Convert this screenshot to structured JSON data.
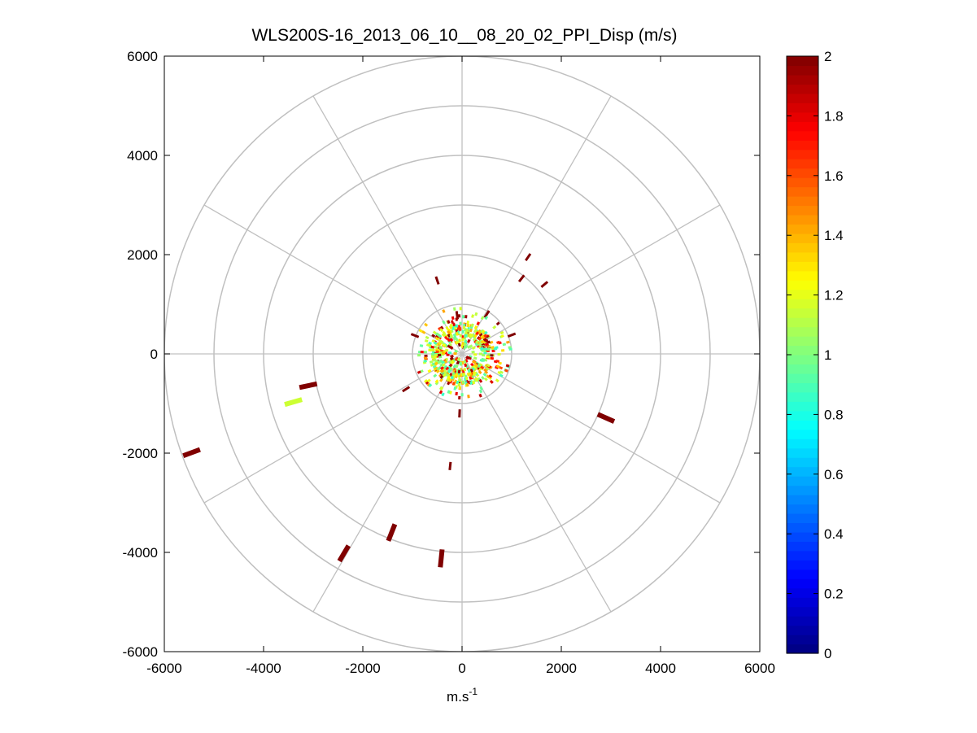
{
  "chart_data": {
    "type": "scatter",
    "title": "WLS200S-16_2013_06_10__08_20_02_PPI_Disp (m/s)",
    "xlabel_base": "m.s",
    "xlabel_sup": "-1",
    "ylabel": "",
    "xlim": [
      -6000,
      6000
    ],
    "ylim": [
      -6000,
      6000
    ],
    "x_ticks": [
      -6000,
      -4000,
      -2000,
      0,
      2000,
      4000,
      6000
    ],
    "y_ticks": [
      -6000,
      -4000,
      -2000,
      0,
      2000,
      4000,
      6000
    ],
    "x_tick_labels": [
      "-6000",
      "-4000",
      "-2000",
      "0",
      "2000",
      "4000",
      "6000"
    ],
    "y_tick_labels": [
      "-6000",
      "-4000",
      "-2000",
      "0",
      "2000",
      "4000",
      "6000"
    ],
    "polar_grid": {
      "ring_radii": [
        1000,
        2000,
        3000,
        4000,
        5000,
        6000
      ],
      "spoke_angles_deg": [
        0,
        30,
        60,
        90,
        120,
        150,
        180,
        210,
        240,
        270,
        300,
        330
      ],
      "grid_color": "#c0c0c0"
    },
    "grid": true,
    "colorbar": {
      "colormap": "jet",
      "clim": [
        0,
        2
      ],
      "ticks": [
        0,
        0.2,
        0.4,
        0.6,
        0.8,
        1,
        1.2,
        1.4,
        1.6,
        1.8,
        2
      ],
      "tick_labels": [
        "0",
        "0.2",
        "0.4",
        "0.6",
        "0.8",
        "1",
        "1.2",
        "1.4",
        "1.6",
        "1.8",
        "2"
      ],
      "position": "right"
    },
    "series": [
      {
        "points": [
          {
            "x": 1330,
            "y": 1950,
            "value": 2.0
          },
          {
            "x": 1660,
            "y": 1400,
            "value": 2.0
          },
          {
            "x": 1200,
            "y": 1520,
            "value": 2.0
          },
          {
            "x": 2900,
            "y": -1290,
            "value": 2.0
          },
          {
            "x": -3100,
            "y": -640,
            "value": 2.0
          },
          {
            "x": -3400,
            "y": -970,
            "value": 1.15
          },
          {
            "x": -5450,
            "y": -1990,
            "value": 2.0
          },
          {
            "x": -2380,
            "y": -4020,
            "value": 2.0
          },
          {
            "x": -1420,
            "y": -3600,
            "value": 2.0
          },
          {
            "x": -420,
            "y": -4120,
            "value": 2.0
          },
          {
            "x": -240,
            "y": -2260,
            "value": 2.0
          },
          {
            "x": -50,
            "y": -1200,
            "value": 2.0
          },
          {
            "x": -500,
            "y": 1480,
            "value": 2.0
          },
          {
            "x": -950,
            "y": 370,
            "value": 2.0
          },
          {
            "x": -1130,
            "y": -710,
            "value": 2.0
          },
          {
            "x": 1000,
            "y": 380,
            "value": 2.0
          },
          {
            "x": 500,
            "y": 800,
            "value": 2.0
          },
          {
            "x": -100,
            "y": 780,
            "value": 2.0
          }
        ]
      }
    ]
  }
}
